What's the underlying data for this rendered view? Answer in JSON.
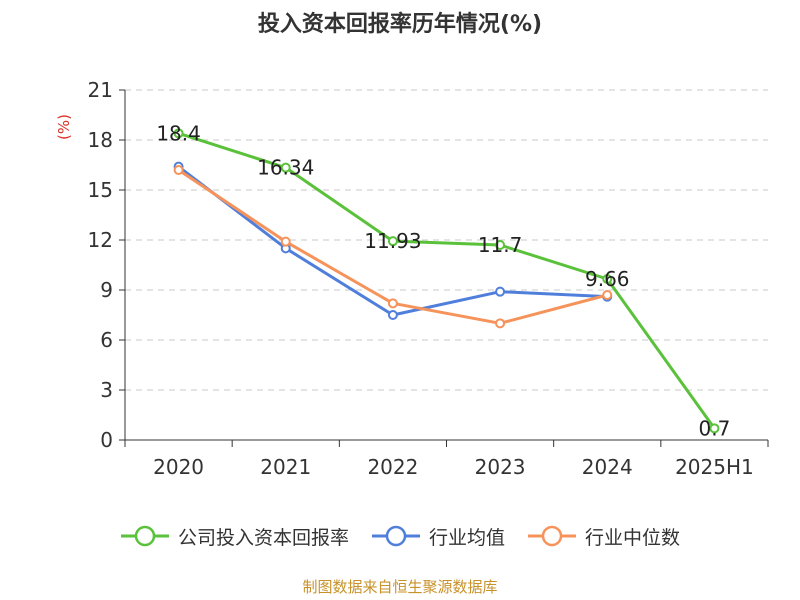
{
  "chart_data": {
    "type": "line",
    "title": "投入资本回报率历年情况(%)",
    "ylabel": "(%)",
    "xlabel": "",
    "categories": [
      "2020",
      "2021",
      "2022",
      "2023",
      "2024",
      "2025H1"
    ],
    "ylim": [
      0,
      21
    ],
    "yticks": [
      0,
      3,
      6,
      9,
      12,
      15,
      18,
      21
    ],
    "grid": true,
    "legend_position": "bottom",
    "series": [
      {
        "name": "公司投入资本回报率",
        "color": "#5ac13a",
        "values": [
          18.4,
          16.34,
          11.93,
          11.7,
          9.66,
          0.7
        ],
        "show_labels": true
      },
      {
        "name": "行业均值",
        "color": "#4f7fdb",
        "values": [
          16.4,
          11.5,
          7.5,
          8.9,
          8.6,
          null
        ],
        "show_labels": false
      },
      {
        "name": "行业中位数",
        "color": "#f5935a",
        "values": [
          16.2,
          11.9,
          8.2,
          7.0,
          8.7,
          null
        ],
        "show_labels": false
      }
    ]
  },
  "source_note": "制图数据来自恒生聚源数据库"
}
